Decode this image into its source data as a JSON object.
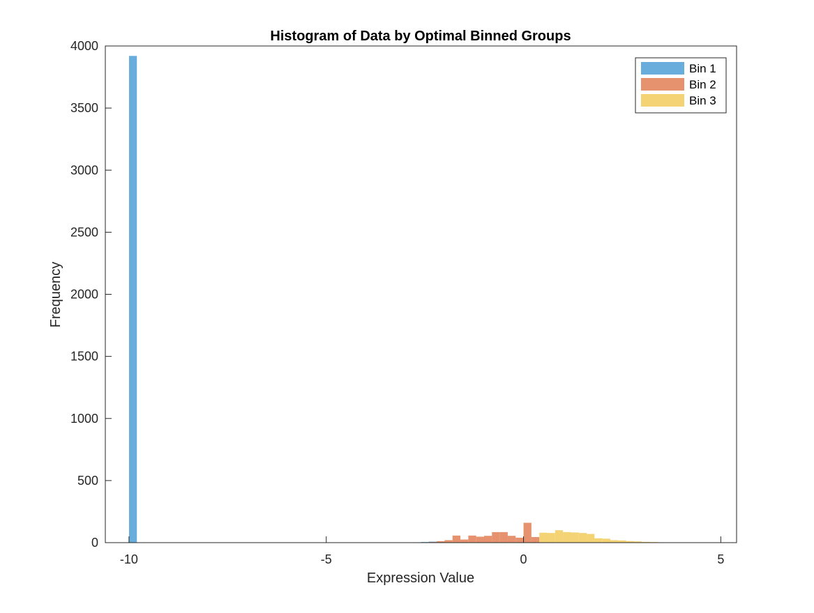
{
  "chart_data": {
    "type": "bar",
    "title": "Histogram of Data by Optimal Binned Groups",
    "xlabel": "Expression Value",
    "ylabel": "Frequency",
    "xlim": [
      -10.6,
      5.4
    ],
    "ylim": [
      0,
      4000
    ],
    "xticks": [
      -10,
      -5,
      0,
      5
    ],
    "yticks": [
      0,
      500,
      1000,
      1500,
      2000,
      2500,
      3000,
      3500,
      4000
    ],
    "grid": false,
    "legend_position": "top-right",
    "bar_width": 0.2,
    "series": [
      {
        "name": "Bin 1",
        "color": "#4f9fd6",
        "bins": [
          {
            "x": -9.9,
            "y": 3920
          },
          {
            "x": -3.3,
            "y": 1
          },
          {
            "x": -3.1,
            "y": 1
          },
          {
            "x": -2.9,
            "y": 2
          },
          {
            "x": -2.7,
            "y": 3
          },
          {
            "x": -2.5,
            "y": 5
          },
          {
            "x": -2.3,
            "y": 8
          },
          {
            "x": -2.1,
            "y": 6
          },
          {
            "x": -1.9,
            "y": 4
          }
        ]
      },
      {
        "name": "Bin 2",
        "color": "#e37f55",
        "bins": [
          {
            "x": -2.3,
            "y": 5
          },
          {
            "x": -2.1,
            "y": 12
          },
          {
            "x": -1.9,
            "y": 20
          },
          {
            "x": -1.7,
            "y": 57
          },
          {
            "x": -1.5,
            "y": 25
          },
          {
            "x": -1.3,
            "y": 57
          },
          {
            "x": -1.1,
            "y": 48
          },
          {
            "x": -0.9,
            "y": 55
          },
          {
            "x": -0.7,
            "y": 85
          },
          {
            "x": -0.5,
            "y": 85
          },
          {
            "x": -0.3,
            "y": 55
          },
          {
            "x": -0.1,
            "y": 40
          },
          {
            "x": 0.1,
            "y": 160
          },
          {
            "x": 0.3,
            "y": 45
          }
        ]
      },
      {
        "name": "Bin 3",
        "color": "#f2cb5d",
        "bins": [
          {
            "x": 0.5,
            "y": 80
          },
          {
            "x": 0.7,
            "y": 78
          },
          {
            "x": 0.9,
            "y": 100
          },
          {
            "x": 1.1,
            "y": 85
          },
          {
            "x": 1.3,
            "y": 82
          },
          {
            "x": 1.5,
            "y": 78
          },
          {
            "x": 1.7,
            "y": 70
          },
          {
            "x": 1.9,
            "y": 35
          },
          {
            "x": 2.1,
            "y": 32
          },
          {
            "x": 2.3,
            "y": 20
          },
          {
            "x": 2.5,
            "y": 18
          },
          {
            "x": 2.7,
            "y": 13
          },
          {
            "x": 2.9,
            "y": 10
          },
          {
            "x": 3.1,
            "y": 6
          },
          {
            "x": 3.3,
            "y": 5
          },
          {
            "x": 3.5,
            "y": 3
          },
          {
            "x": 3.7,
            "y": 2
          }
        ]
      }
    ]
  }
}
